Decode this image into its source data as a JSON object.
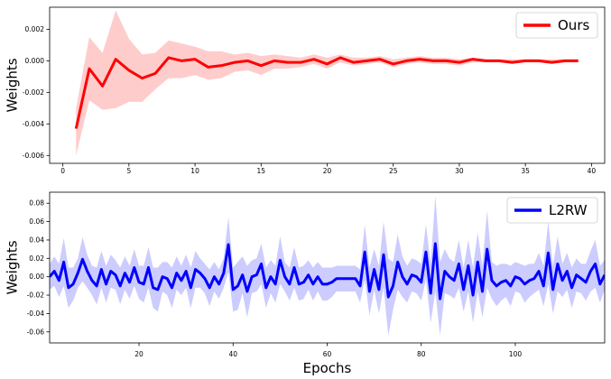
{
  "chart_data": [
    {
      "type": "line",
      "ylabel": "Weights",
      "xlim": [
        -1,
        41
      ],
      "ylim": [
        -0.0065,
        0.0034
      ],
      "x_ticks": [
        0,
        5,
        10,
        15,
        20,
        25,
        30,
        35,
        40
      ],
      "y_ticks": [
        -0.006,
        -0.004,
        -0.002,
        0.0,
        0.002
      ],
      "y_tick_labels": [
        "-0.006",
        "-0.004",
        "-0.002",
        "0.000",
        "0.002"
      ],
      "legend_position": "top-right",
      "band_color": "#ffcccc",
      "series": [
        {
          "name": "Ours",
          "color": "#ff0000",
          "x": [
            1,
            2,
            3,
            4,
            5,
            6,
            7,
            8,
            9,
            10,
            11,
            12,
            13,
            14,
            15,
            16,
            17,
            18,
            19,
            20,
            21,
            22,
            23,
            24,
            25,
            26,
            27,
            28,
            29,
            30,
            31,
            32,
            33,
            34,
            35,
            36,
            37,
            38,
            39
          ],
          "values": [
            -0.0043,
            -0.0005,
            -0.0016,
            0.0001,
            -0.0006,
            -0.0011,
            -0.0008,
            0.0002,
            0.0,
            0.0001,
            -0.0004,
            -0.0003,
            -0.0001,
            0.0,
            -0.0003,
            0.0,
            -0.0001,
            -0.0001,
            0.0001,
            -0.0002,
            0.0002,
            -0.0001,
            0.0,
            0.0001,
            -0.0002,
            0.0,
            0.0001,
            0.0,
            0.0,
            -0.0001,
            0.0001,
            0.0,
            0.0,
            -0.0001,
            0.0,
            0.0,
            -0.0001,
            0.0,
            0.0
          ],
          "upper": [
            -0.003,
            0.0015,
            0.0005,
            0.0032,
            0.0014,
            0.0004,
            0.0005,
            0.0013,
            0.0011,
            0.0009,
            0.0006,
            0.0006,
            0.0004,
            0.0005,
            0.0003,
            0.0004,
            0.0003,
            0.0002,
            0.0004,
            0.0002,
            0.0004,
            0.0002,
            0.0002,
            0.0003,
            0.0001,
            0.0002,
            0.0003,
            0.0002,
            0.0002,
            0.0001,
            0.0002,
            0.0001,
            0.0001,
            0.0001,
            0.0001,
            0.0001,
            0.0001,
            0.0001,
            0.0001
          ],
          "lower": [
            -0.006,
            -0.0025,
            -0.0031,
            -0.003,
            -0.0026,
            -0.0026,
            -0.0018,
            -0.0011,
            -0.0011,
            -0.0009,
            -0.0012,
            -0.0011,
            -0.0007,
            -0.0006,
            -0.0009,
            -0.0005,
            -0.0005,
            -0.0004,
            -0.0002,
            -0.0005,
            -0.0001,
            -0.0003,
            -0.0002,
            -0.0001,
            -0.0004,
            -0.0002,
            -0.0001,
            -0.0002,
            -0.0002,
            -0.0003,
            -0.0001,
            -0.0001,
            -0.0001,
            -0.0002,
            -0.0001,
            -0.0001,
            -0.0002,
            -0.0001,
            -0.0001
          ]
        }
      ]
    },
    {
      "type": "line",
      "xlabel": "Epochs",
      "ylabel": "Weights",
      "xlim": [
        1,
        119
      ],
      "ylim": [
        -0.072,
        0.092
      ],
      "x_ticks": [
        20,
        40,
        60,
        80,
        100
      ],
      "y_ticks": [
        -0.06,
        -0.04,
        -0.02,
        0.0,
        0.02,
        0.04,
        0.06,
        0.08
      ],
      "y_tick_labels": [
        "-0.06",
        "-0.04",
        "-0.02",
        "0.00",
        "0.02",
        "0.04",
        "0.06",
        "0.08"
      ],
      "legend_position": "top-right",
      "band_color": "#ccccff",
      "series": [
        {
          "name": "L2RW",
          "color": "#0000ff",
          "x": [
            1,
            2,
            3,
            4,
            5,
            6,
            7,
            8,
            9,
            10,
            11,
            12,
            13,
            14,
            15,
            16,
            17,
            18,
            19,
            20,
            21,
            22,
            23,
            24,
            25,
            26,
            27,
            28,
            29,
            30,
            31,
            32,
            33,
            34,
            35,
            36,
            37,
            38,
            39,
            40,
            41,
            42,
            43,
            44,
            45,
            46,
            47,
            48,
            49,
            50,
            51,
            52,
            53,
            54,
            55,
            56,
            57,
            58,
            59,
            60,
            61,
            62,
            63,
            64,
            65,
            66,
            67,
            68,
            69,
            70,
            71,
            72,
            73,
            74,
            75,
            76,
            77,
            78,
            79,
            80,
            81,
            82,
            83,
            84,
            85,
            86,
            87,
            88,
            89,
            90,
            91,
            92,
            93,
            94,
            95,
            96,
            97,
            98,
            99,
            100,
            101,
            102,
            103,
            104,
            105,
            106,
            107,
            108,
            109,
            110,
            111,
            112,
            113,
            114,
            115,
            116,
            117,
            118,
            119
          ],
          "values": [
            0.0,
            0.006,
            -0.004,
            0.016,
            -0.012,
            -0.008,
            0.004,
            0.019,
            0.006,
            -0.004,
            -0.01,
            0.008,
            -0.008,
            0.006,
            0.002,
            -0.01,
            0.004,
            -0.006,
            0.01,
            -0.006,
            -0.008,
            0.01,
            -0.012,
            -0.014,
            0.0,
            -0.002,
            -0.012,
            0.004,
            -0.004,
            0.006,
            -0.012,
            0.008,
            0.004,
            -0.002,
            -0.012,
            0.0,
            -0.008,
            0.004,
            0.035,
            -0.014,
            -0.01,
            0.002,
            -0.016,
            0.0,
            0.002,
            0.014,
            -0.012,
            0.0,
            -0.008,
            0.018,
            0.0,
            -0.008,
            0.01,
            -0.008,
            -0.006,
            0.002,
            -0.008,
            0.0,
            -0.008,
            -0.008,
            -0.006,
            -0.002,
            -0.002,
            -0.002,
            -0.002,
            -0.002,
            -0.01,
            0.027,
            -0.016,
            0.008,
            -0.014,
            0.024,
            -0.022,
            -0.01,
            0.016,
            0.0,
            -0.008,
            0.002,
            0.0,
            -0.006,
            0.027,
            -0.018,
            0.036,
            -0.024,
            0.006,
            0.0,
            -0.004,
            0.014,
            -0.014,
            0.012,
            -0.02,
            0.016,
            -0.016,
            0.03,
            -0.004,
            -0.01,
            -0.006,
            -0.004,
            -0.01,
            0.0,
            -0.002,
            -0.008,
            -0.004,
            -0.002,
            0.006,
            -0.01,
            0.026,
            -0.014,
            0.014,
            -0.004,
            0.006,
            -0.012,
            0.002,
            -0.002,
            -0.006,
            0.006,
            0.014,
            -0.008,
            0.002
          ],
          "band": [
            0.014,
            0.016,
            0.018,
            0.026,
            0.022,
            0.018,
            0.016,
            0.024,
            0.018,
            0.016,
            0.02,
            0.02,
            0.02,
            0.018,
            0.016,
            0.02,
            0.018,
            0.018,
            0.02,
            0.018,
            0.02,
            0.022,
            0.022,
            0.024,
            0.016,
            0.018,
            0.022,
            0.018,
            0.016,
            0.018,
            0.022,
            0.02,
            0.016,
            0.016,
            0.02,
            0.016,
            0.016,
            0.016,
            0.03,
            0.024,
            0.026,
            0.02,
            0.028,
            0.018,
            0.018,
            0.022,
            0.022,
            0.018,
            0.02,
            0.026,
            0.016,
            0.018,
            0.022,
            0.018,
            0.018,
            0.016,
            0.018,
            0.016,
            0.018,
            0.018,
            0.016,
            0.014,
            0.014,
            0.014,
            0.014,
            0.014,
            0.018,
            0.03,
            0.026,
            0.022,
            0.026,
            0.036,
            0.042,
            0.026,
            0.03,
            0.022,
            0.02,
            0.018,
            0.018,
            0.02,
            0.03,
            0.032,
            0.052,
            0.04,
            0.024,
            0.02,
            0.02,
            0.026,
            0.024,
            0.028,
            0.03,
            0.032,
            0.028,
            0.042,
            0.02,
            0.022,
            0.02,
            0.018,
            0.022,
            0.016,
            0.016,
            0.02,
            0.018,
            0.016,
            0.02,
            0.022,
            0.034,
            0.026,
            0.03,
            0.018,
            0.02,
            0.022,
            0.018,
            0.016,
            0.02,
            0.022,
            0.026,
            0.02,
            0.016
          ]
        }
      ]
    }
  ]
}
